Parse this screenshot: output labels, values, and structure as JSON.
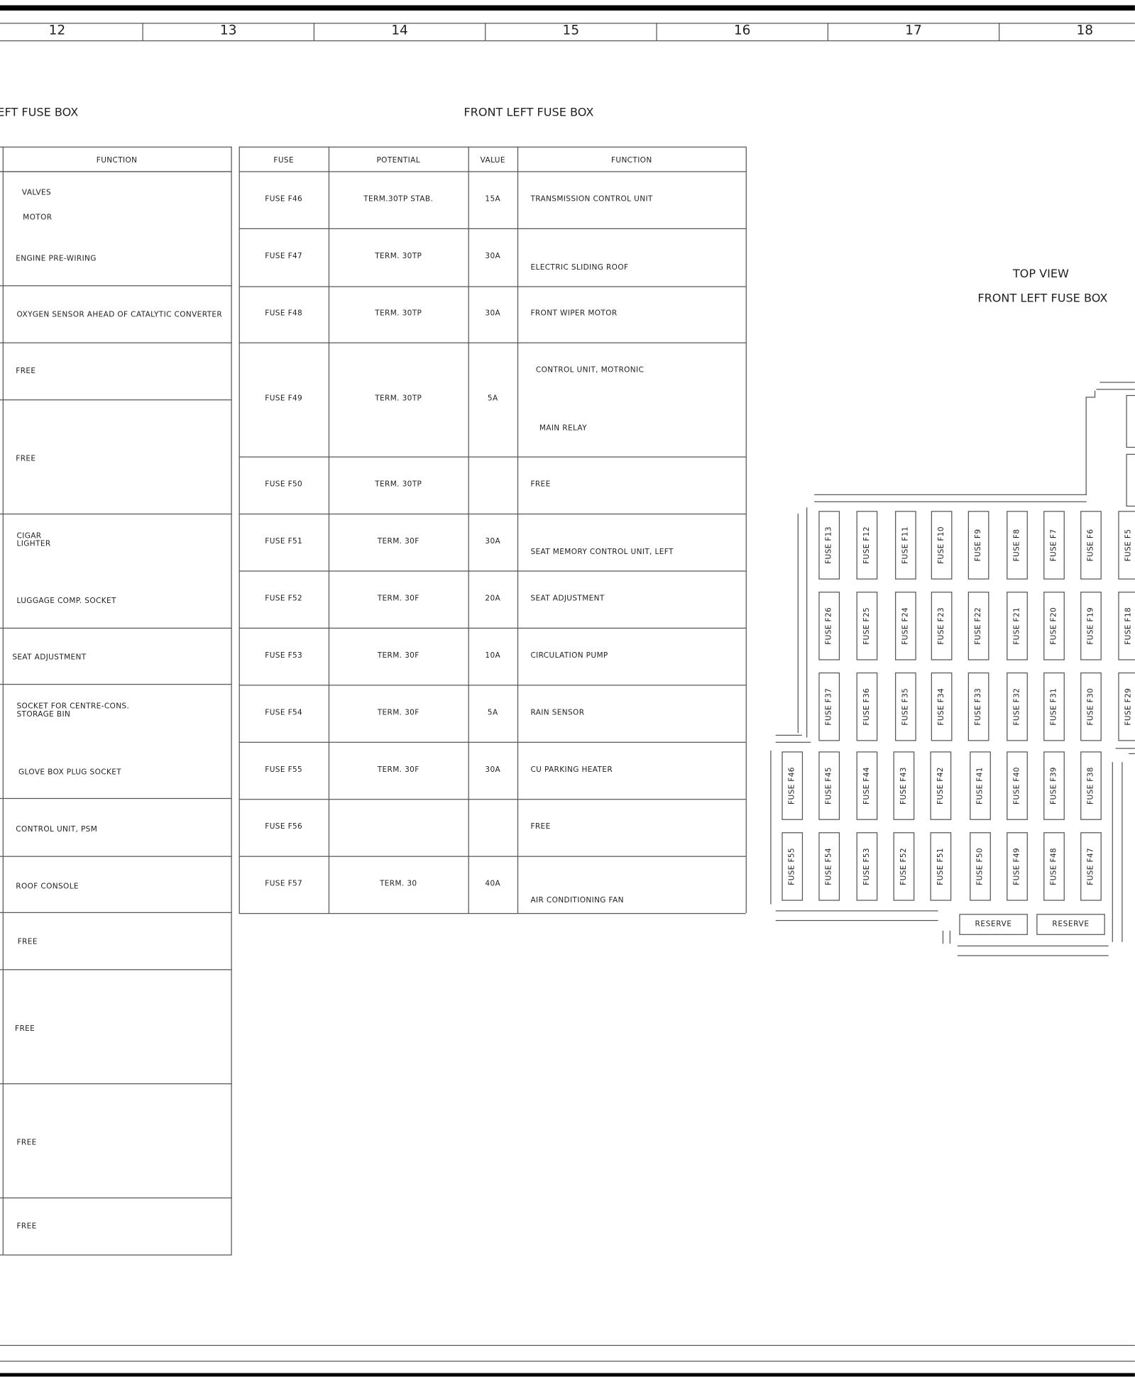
{
  "ruler": {
    "numbers": [
      "12",
      "13",
      "14",
      "15",
      "16",
      "17",
      "18"
    ]
  },
  "left_table": {
    "title": "EFT FUSE BOX",
    "header": "FUNCTION",
    "rows": [
      {
        "lines": [
          "VALVES",
          "MOTOR",
          "ENGINE PRE-WIRING"
        ]
      },
      {
        "lines": [
          "OXYGEN SENSOR AHEAD OF CATALYTIC CONVERTER"
        ]
      },
      {
        "lines": [
          "FREE"
        ]
      },
      {
        "lines": [
          "FREE"
        ]
      },
      {
        "lines": [
          "CIGAR\nLIGHTER",
          "LUGGAGE COMP. SOCKET"
        ]
      },
      {
        "lines": [
          "SEAT ADJUSTMENT"
        ]
      },
      {
        "lines": [
          "SOCKET FOR CENTRE-CONS.\nSTORAGE BIN",
          "GLOVE BOX PLUG SOCKET"
        ]
      },
      {
        "lines": [
          "CONTROL UNIT, PSM"
        ]
      },
      {
        "lines": [
          "ROOF CONSOLE"
        ]
      },
      {
        "lines": [
          "FREE"
        ]
      },
      {
        "lines": [
          "FREE"
        ]
      },
      {
        "lines": [
          "FREE"
        ]
      },
      {
        "lines": [
          "FREE"
        ]
      }
    ]
  },
  "mid_table": {
    "title": "FRONT LEFT FUSE BOX",
    "headers": [
      "FUSE",
      "POTENTIAL",
      "VALUE",
      "FUNCTION"
    ],
    "rows": [
      {
        "fuse": "FUSE F46",
        "potential": "TERM.30TP STAB.",
        "value": "15A",
        "function": [
          "TRANSMISSION CONTROL UNIT"
        ]
      },
      {
        "fuse": "FUSE F47",
        "potential": "TERM. 30TP",
        "value": "30A",
        "function": [
          "ELECTRIC SLIDING ROOF"
        ]
      },
      {
        "fuse": "FUSE F48",
        "potential": "TERM. 30TP",
        "value": "30A",
        "function": [
          "FRONT WIPER MOTOR"
        ]
      },
      {
        "fuse": "FUSE F49",
        "potential": "TERM. 30TP",
        "value": "5A",
        "function": [
          "CONTROL UNIT, MOTRONIC",
          "MAIN RELAY"
        ]
      },
      {
        "fuse": "FUSE F50",
        "potential": "TERM. 30TP",
        "value": "",
        "function": [
          "FREE"
        ]
      },
      {
        "fuse": "FUSE F51",
        "potential": "TERM. 30F",
        "value": "30A",
        "function": [
          "SEAT MEMORY CONTROL UNIT, LEFT"
        ]
      },
      {
        "fuse": "FUSE F52",
        "potential": "TERM. 30F",
        "value": "20A",
        "function": [
          "SEAT ADJUSTMENT"
        ]
      },
      {
        "fuse": "FUSE F53",
        "potential": "TERM. 30F",
        "value": "10A",
        "function": [
          "CIRCULATION PUMP"
        ]
      },
      {
        "fuse": "FUSE F54",
        "potential": "TERM. 30F",
        "value": "5A",
        "function": [
          "RAIN SENSOR"
        ]
      },
      {
        "fuse": "FUSE F55",
        "potential": "TERM. 30F",
        "value": "30A",
        "function": [
          "CU PARKING HEATER"
        ]
      },
      {
        "fuse": "FUSE F56",
        "potential": "",
        "value": "",
        "function": [
          "FREE"
        ]
      },
      {
        "fuse": "FUSE F57",
        "potential": "TERM. 30",
        "value": "40A",
        "function": [
          "AIR CONDITIONING FAN"
        ]
      }
    ]
  },
  "fuse_box": {
    "view_label": "TOP VIEW",
    "title": "FRONT LEFT FUSE BOX",
    "rows": [
      [
        "FUSE F13",
        "FUSE F12",
        "FUSE F11",
        "FUSE F10",
        "FUSE F9",
        "FUSE F8",
        "FUSE F7",
        "FUSE F6",
        "FUSE F5"
      ],
      [
        "FUSE F26",
        "FUSE F25",
        "FUSE F24",
        "FUSE F23",
        "FUSE F22",
        "FUSE F21",
        "FUSE F20",
        "FUSE F19",
        "FUSE F18"
      ],
      [
        "FUSE F37",
        "FUSE F36",
        "FUSE F35",
        "FUSE F34",
        "FUSE F33",
        "FUSE F32",
        "FUSE F31",
        "FUSE F30",
        "FUSE F29"
      ],
      [
        "FUSE F46",
        "FUSE F45",
        "FUSE F44",
        "FUSE F43",
        "FUSE F42",
        "FUSE F41",
        "FUSE F40",
        "FUSE F39",
        "FUSE F38"
      ],
      [
        "FUSE F55",
        "FUSE F54",
        "FUSE F53",
        "FUSE F52",
        "FUSE F51",
        "FUSE F50",
        "FUSE F49",
        "FUSE F48",
        "FUSE F47"
      ]
    ],
    "reserve": [
      "RESERVE",
      "RESERVE"
    ]
  }
}
